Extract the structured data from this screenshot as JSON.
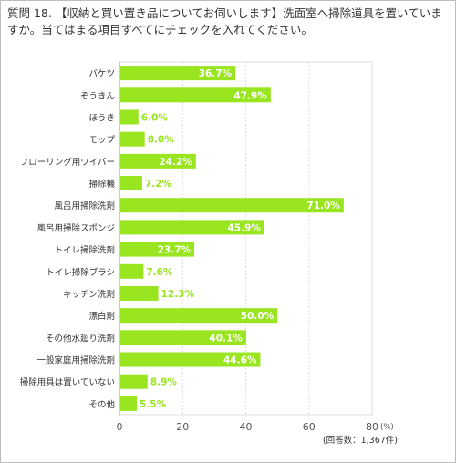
{
  "question": {
    "number": "質問 18.",
    "text": "【収納と買い置き品についてお伺いします】洗面室へ掃除道具を置いていますか。当てはまる項目すべてにチェックを入れてください。"
  },
  "chart_data": {
    "type": "bar",
    "orientation": "horizontal",
    "categories": [
      "バケツ",
      "ぞうきん",
      "ほうき",
      "モップ",
      "フローリング用ワイパー",
      "掃除機",
      "風呂用掃除洗剤",
      "風呂用掃除スポンジ",
      "トイレ掃除洗剤",
      "トイレ掃除ブラシ",
      "キッチン洗剤",
      "漂白剤",
      "その他水廻り洗剤",
      "一般家庭用掃除洗剤",
      "掃除用具は置いていない",
      "その他"
    ],
    "values": [
      36.7,
      47.9,
      6.0,
      8.0,
      24.2,
      7.2,
      71.0,
      45.9,
      23.7,
      7.6,
      12.3,
      50.0,
      40.1,
      44.6,
      8.9,
      5.5
    ],
    "value_labels": [
      "36.7%",
      "47.9%",
      "6.0%",
      "8.0%",
      "24.2%",
      "7.2%",
      "71.0%",
      "45.9%",
      "23.7%",
      "7.6%",
      "12.3%",
      "50.0%",
      "40.1%",
      "44.6%",
      "8.9%",
      "5.5%"
    ],
    "xlim": [
      0,
      80
    ],
    "xticks": [
      "0",
      "20",
      "40",
      "60",
      "80"
    ],
    "x_unit": "(%)",
    "note": "(回答数：1,367件)",
    "grid": true,
    "colors": {
      "bar": "#99e51f",
      "value_inside": "#ffffff",
      "value_outside": "#99e51f",
      "grid": "#dddddd",
      "axis": "#999999"
    }
  }
}
